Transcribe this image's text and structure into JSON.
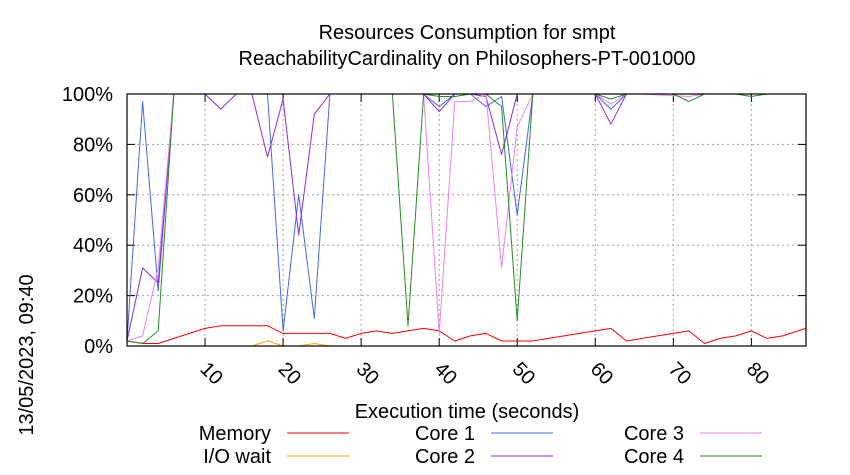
{
  "chart_data": {
    "type": "line",
    "title": "Resources Consumption for smpt",
    "subtitle": "ReachabilityCardinality on Philosophers-PT-001000",
    "xlabel": "Execution time (seconds)",
    "ylabel": "",
    "side_label": "13/05/2023, 09:40",
    "xlim": [
      0,
      87
    ],
    "ylim": [
      0,
      100
    ],
    "x_ticks": [
      10,
      20,
      30,
      40,
      50,
      60,
      70,
      80
    ],
    "y_ticks": [
      0,
      20,
      40,
      60,
      80,
      100
    ],
    "y_tick_labels": [
      "0%",
      "20%",
      "40%",
      "60%",
      "80%",
      "100%"
    ],
    "grid": true,
    "legend_position": "bottom",
    "series": [
      {
        "name": "Memory",
        "color": "#ff0000",
        "x": [
          0,
          2,
          4,
          6,
          8,
          10,
          12,
          14,
          16,
          18,
          20,
          22,
          24,
          26,
          28,
          30,
          32,
          34,
          36,
          38,
          40,
          42,
          44,
          46,
          48,
          50,
          52,
          54,
          56,
          58,
          60,
          62,
          64,
          66,
          68,
          70,
          72,
          74,
          76,
          78,
          80,
          82,
          84,
          87
        ],
        "y": [
          2,
          1,
          1,
          3,
          5,
          7,
          8,
          8,
          8,
          8,
          5,
          5,
          5,
          5,
          3,
          5,
          6,
          5,
          6,
          7,
          6,
          2,
          4,
          5,
          2,
          2,
          2,
          3,
          4,
          5,
          6,
          7,
          2,
          3,
          4,
          5,
          6,
          1,
          3,
          4,
          6,
          3,
          4,
          7
        ]
      },
      {
        "name": "I/O wait",
        "color": "#ffa500",
        "x": [
          0,
          2,
          4,
          6,
          10,
          16,
          18,
          20,
          22,
          24,
          26,
          28,
          36,
          40,
          44,
          50,
          60,
          70,
          80,
          87
        ],
        "y": [
          0,
          0,
          0,
          0,
          0,
          0,
          2,
          0,
          0,
          1,
          0,
          0,
          0,
          0,
          0,
          0,
          0,
          0,
          0,
          0
        ]
      },
      {
        "name": "Core 1",
        "color": "#4169e1",
        "x": [
          0,
          2,
          4,
          6,
          8,
          16,
          18,
          20,
          22,
          24,
          26,
          38,
          40,
          42,
          44,
          46,
          48,
          50,
          52,
          60,
          62,
          64,
          66,
          70,
          80,
          87
        ],
        "y": [
          2,
          97,
          22,
          100,
          100,
          100,
          100,
          6,
          60,
          11,
          100,
          100,
          95,
          100,
          100,
          95,
          99,
          52,
          100,
          100,
          94,
          100,
          100,
          100,
          100,
          100
        ]
      },
      {
        "name": "Core 2",
        "color": "#8a2be2",
        "x": [
          0,
          2,
          4,
          6,
          8,
          10,
          12,
          14,
          16,
          18,
          20,
          22,
          24,
          26,
          36,
          38,
          40,
          42,
          44,
          46,
          48,
          50,
          52,
          60,
          62,
          64,
          66,
          70,
          80,
          87
        ],
        "y": [
          2,
          31,
          25,
          100,
          100,
          100,
          94,
          100,
          100,
          75,
          98,
          44,
          92,
          100,
          100,
          100,
          93,
          100,
          100,
          99,
          76,
          100,
          100,
          100,
          88,
          100,
          100,
          100,
          100,
          100
        ]
      },
      {
        "name": "Core 3",
        "color": "#ee82ee",
        "x": [
          0,
          2,
          4,
          6,
          8,
          36,
          38,
          40,
          42,
          44,
          46,
          48,
          50,
          52,
          60,
          62,
          64,
          66,
          72,
          74,
          80,
          87
        ],
        "y": [
          2,
          4,
          31,
          100,
          100,
          100,
          100,
          5,
          97,
          97,
          100,
          31,
          87,
          100,
          100,
          96,
          100,
          100,
          99,
          100,
          100,
          100
        ]
      },
      {
        "name": "Core 4",
        "color": "#228b22",
        "x": [
          0,
          2,
          4,
          6,
          8,
          34,
          36,
          38,
          40,
          42,
          44,
          46,
          48,
          50,
          52,
          60,
          62,
          64,
          68,
          70,
          72,
          74,
          78,
          80,
          82,
          87
        ],
        "y": [
          2,
          1,
          6,
          100,
          100,
          100,
          8,
          100,
          99,
          99,
          100,
          100,
          95,
          10,
          100,
          100,
          98,
          100,
          100,
          100,
          97,
          100,
          100,
          99,
          100,
          100
        ]
      }
    ]
  }
}
